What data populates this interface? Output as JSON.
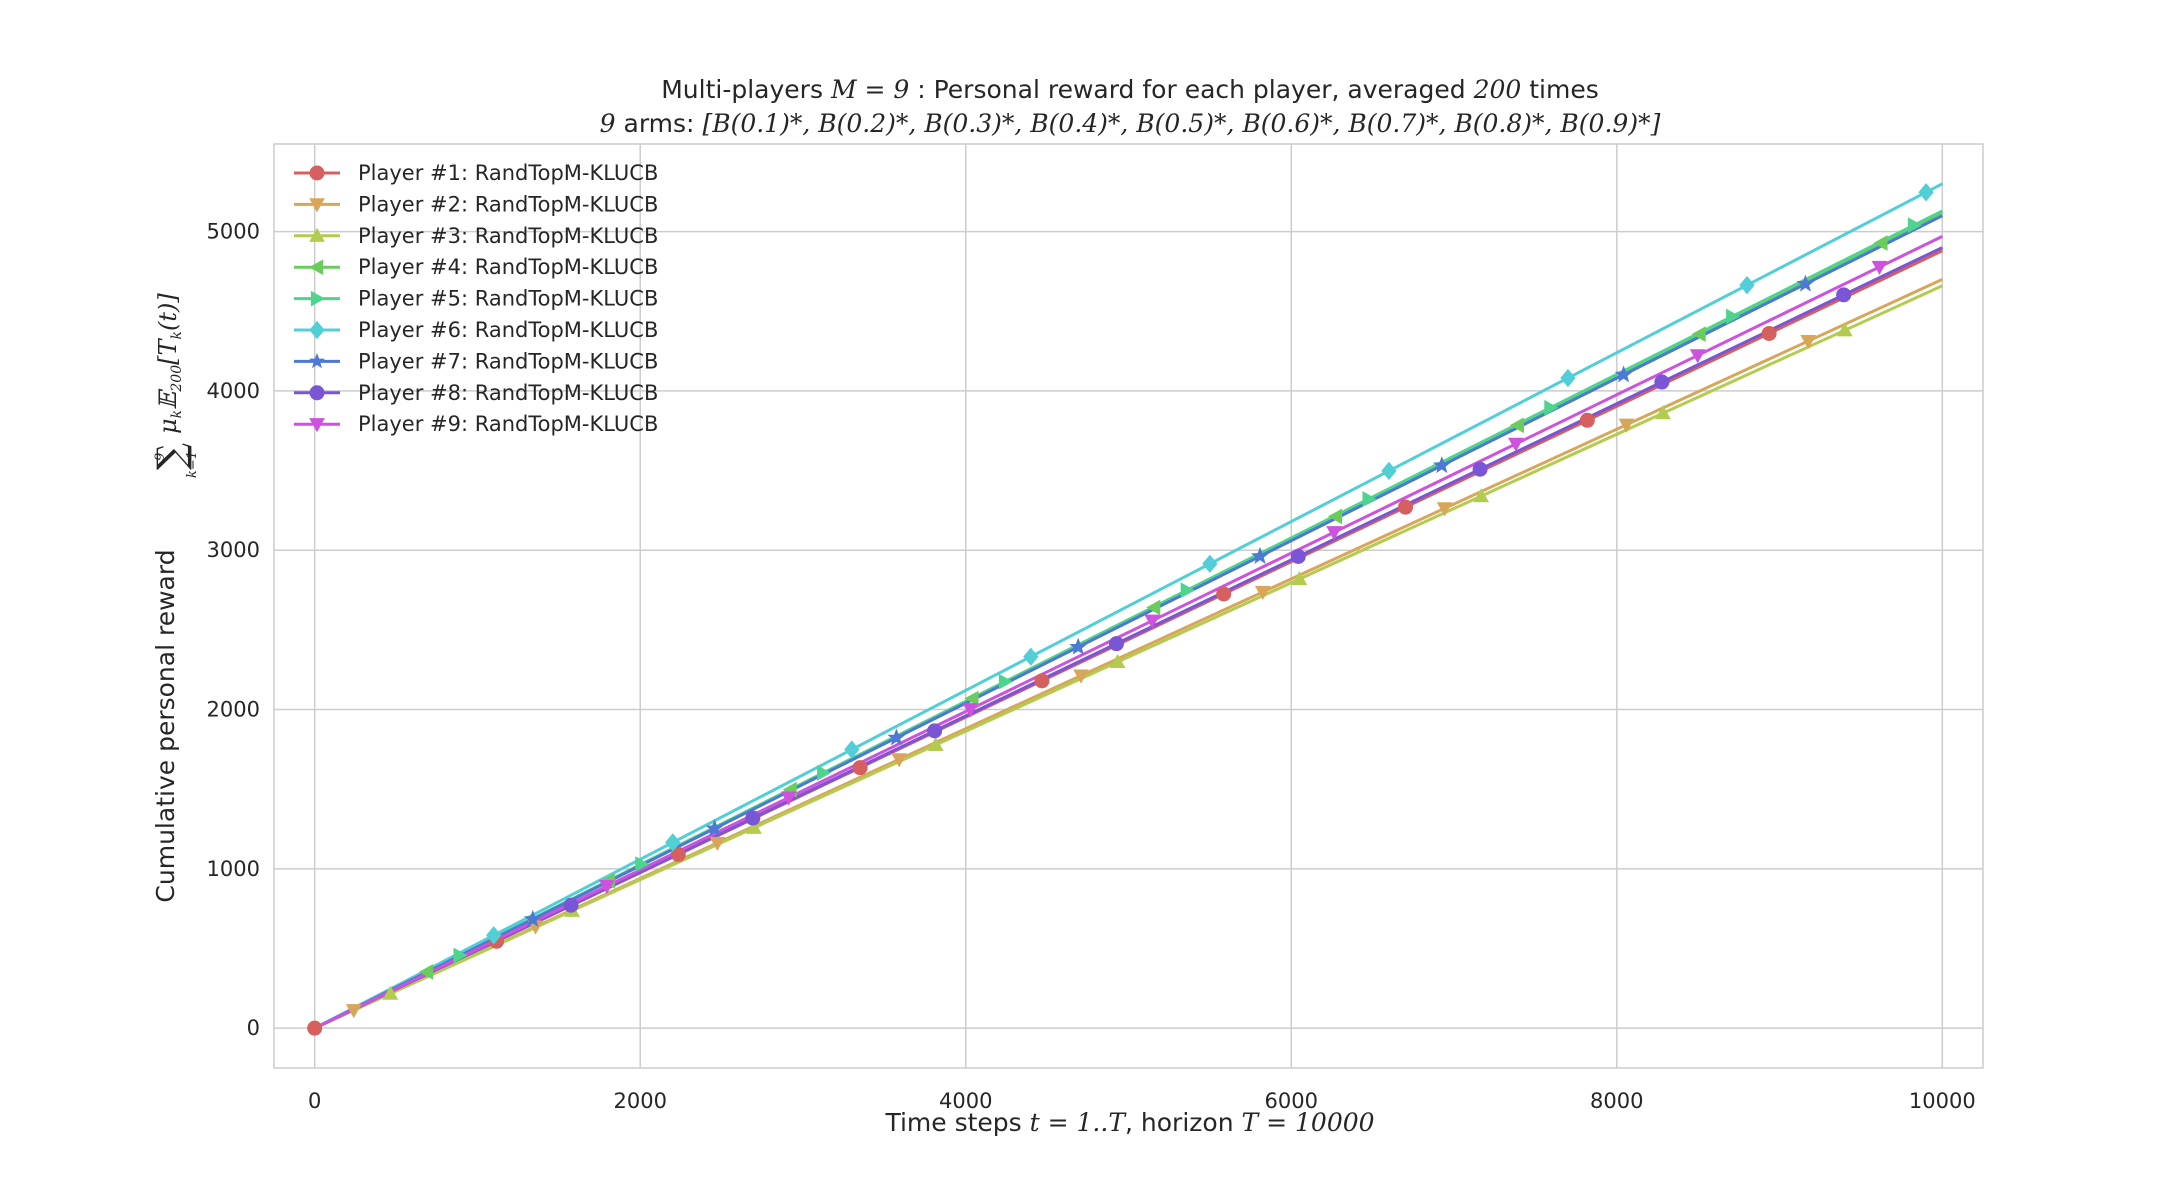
{
  "chart_data": {
    "type": "line",
    "title": "Multi-players $M=9$ : Personal reward for each player, averaged $200$ times",
    "subtitle": "$9$ arms: $[B(0.1)^*, B(0.2)^*, B(0.3)^*, B(0.4)^*, B(0.5)^*, B(0.6)^*, B(0.7)^*, B(0.8)^*, B(0.9)^*]$",
    "xlabel": "Time steps $t=1..T$, horizon $T=10000$",
    "ylabel": "Cumulative personal reward $\\sum_{k=1}^{9} \\mu_k \\mathbb{E}_{200}[T_k(t)]$",
    "xlim": [
      -250,
      10250
    ],
    "ylim": [
      -250,
      5550
    ],
    "xticks": [
      0,
      2000,
      4000,
      6000,
      8000,
      10000
    ],
    "yticks": [
      0,
      1000,
      2000,
      3000,
      4000,
      5000
    ],
    "grid": true,
    "legend_position": "top-left",
    "series": [
      {
        "name": "Player #1: RandTopM-KLUCB",
        "color": "#d65f5f",
        "marker": "circle",
        "start_index": 0,
        "marker_every": 1117,
        "x": [
          0,
          10000
        ],
        "y": [
          0,
          4880
        ]
      },
      {
        "name": "Player #2: RandTopM-KLUCB",
        "color": "#d8a65a",
        "marker": "triangle-down",
        "start_index": 240,
        "marker_every": 1117,
        "x": [
          0,
          10000
        ],
        "y": [
          0,
          4700
        ]
      },
      {
        "name": "Player #3: RandTopM-KLUCB",
        "color": "#b3cc50",
        "marker": "triangle-up",
        "start_index": 465,
        "marker_every": 1117,
        "x": [
          0,
          10000
        ],
        "y": [
          0,
          4660
        ]
      },
      {
        "name": "Player #4: RandTopM-KLUCB",
        "color": "#6bcc5e",
        "marker": "triangle-left",
        "start_index": 690,
        "marker_every": 1117,
        "x": [
          0,
          10000
        ],
        "y": [
          0,
          5120
        ]
      },
      {
        "name": "Player #5: RandTopM-KLUCB",
        "color": "#4ed48c",
        "marker": "triangle-right",
        "start_index": 890,
        "marker_every": 1117,
        "x": [
          0,
          10000
        ],
        "y": [
          0,
          5130
        ]
      },
      {
        "name": "Player #6: RandTopM-KLUCB",
        "color": "#52cfd6",
        "marker": "diamond",
        "start_index": 1100,
        "marker_every": 1100,
        "x": [
          0,
          10000
        ],
        "y": [
          0,
          5300
        ]
      },
      {
        "name": "Player #7: RandTopM-KLUCB",
        "color": "#4c79d4",
        "marker": "star",
        "start_index": 1340,
        "marker_every": 1117,
        "x": [
          0,
          10000
        ],
        "y": [
          0,
          5100
        ]
      },
      {
        "name": "Player #8: RandTopM-KLUCB",
        "color": "#7a55d6",
        "marker": "circle",
        "start_index": 1575,
        "marker_every": 1117,
        "x": [
          0,
          10000
        ],
        "y": [
          0,
          4900
        ]
      },
      {
        "name": "Player #9: RandTopM-KLUCB",
        "color": "#cd52de",
        "marker": "triangle-down",
        "start_index": 1795,
        "marker_every": 1117,
        "x": [
          0,
          10000
        ],
        "y": [
          0,
          4970
        ]
      }
    ]
  },
  "text": {
    "title_pre": "Multi-players ",
    "title_M": "M",
    "title_eq9": " = 9",
    "title_mid": " : Personal reward for each player, averaged ",
    "title_200": "200",
    "title_post": " times",
    "subtitle_9": "9",
    "subtitle_arms": " arms: ",
    "subtitle_set": "[B(0.1)*, B(0.2)*, B(0.3)*, B(0.4)*, B(0.5)*, B(0.6)*, B(0.7)*, B(0.8)*, B(0.9)*]",
    "xlabel_pre": "Time steps ",
    "xlabel_t": "t",
    "xlabel_range": " = 1..",
    "xlabel_T": "T",
    "xlabel_mid": ", horizon ",
    "xlabel_T2": "T",
    "xlabel_val": " = 10000",
    "ylabel_pre": "Cumulative personal reward ",
    "ylabel_sum": "∑",
    "ylabel_sup": "9",
    "ylabel_sub": "k=1",
    "ylabel_expr": "μ",
    "ylabel_k": "k",
    "ylabel_E": "𝔼",
    "ylabel_200": "200",
    "ylabel_T": "[T",
    "ylabel_k2": "k",
    "ylabel_end": "(t)]"
  }
}
